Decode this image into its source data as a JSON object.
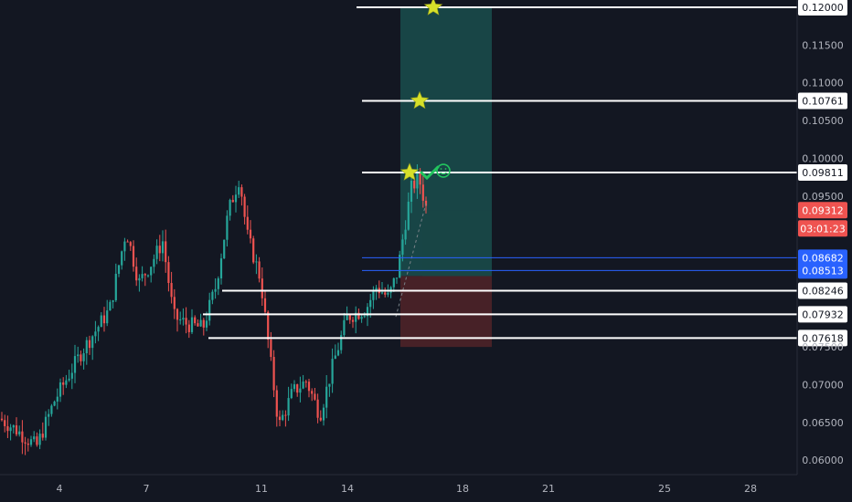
{
  "theme": {
    "background": "#131722",
    "grid": "#1e222d",
    "axis_text": "#b2b5be",
    "up": "#26a69a",
    "down": "#ef5350",
    "target_zone": "#1a4a4a",
    "stop_zone": "#4a2228",
    "star": "#d6e02a",
    "check": "#22c55e",
    "blue_line": "#2962ff"
  },
  "chart_data": {
    "type": "candlestick",
    "x_ticks": [
      "4",
      "7",
      "11",
      "14",
      "18",
      "21",
      "25",
      "28"
    ],
    "y_ticks": [
      "0.06000",
      "0.06500",
      "0.07000",
      "0.07500",
      "0.09500",
      "0.10000",
      "0.10500",
      "0.11000",
      "0.11500"
    ],
    "ylim": [
      0.058,
      0.1205
    ],
    "grid": false,
    "levels": [
      {
        "label": "0.12000",
        "value": 0.12,
        "style": "white",
        "with_star": true
      },
      {
        "label": "0.10761",
        "value": 0.10761,
        "style": "white",
        "with_star": true
      },
      {
        "label": "0.09811",
        "value": 0.09811,
        "style": "white",
        "with_star": true,
        "with_check": true
      },
      {
        "label": "0.08682",
        "value": 0.08682,
        "style": "blue"
      },
      {
        "label": "0.08513",
        "value": 0.08513,
        "style": "blue"
      },
      {
        "label": "0.08246",
        "value": 0.08246,
        "style": "white"
      },
      {
        "label": "0.07932",
        "value": 0.07932,
        "style": "white"
      },
      {
        "label": "0.07618",
        "value": 0.07618,
        "style": "white"
      }
    ],
    "current_price": {
      "label": "0.09312",
      "value": 0.09312,
      "countdown": "03:01:23"
    },
    "position": {
      "entry": 0.0844,
      "target": 0.12,
      "stop": 0.075
    },
    "candles_summary": "hourly candles rising from ~0.064 to ~0.092, dip to ~0.064, rally to ~0.098"
  }
}
